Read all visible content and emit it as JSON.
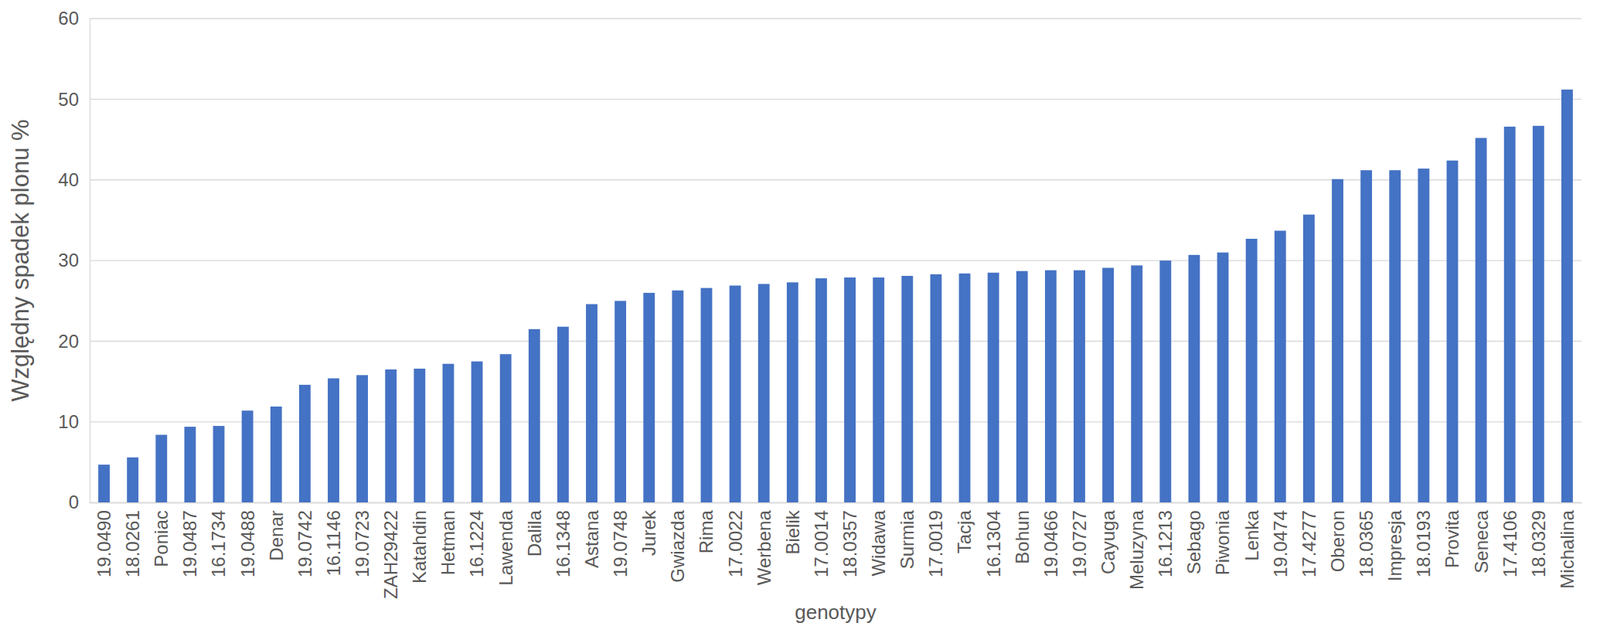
{
  "chart_data": {
    "type": "bar",
    "y_label": "Względny spadek plonu %",
    "x_label": "genotypy",
    "categories": [
      "19.0490",
      "18.0261",
      "Poniac",
      "19.0487",
      "16.1734",
      "19.0488",
      "Denar",
      "19.0742",
      "16.1146",
      "19.0723",
      "ZAH29422",
      "Katahdin",
      "Hetman",
      "16.1224",
      "Lawenda",
      "Dalila",
      "16.1348",
      "Astana",
      "19.0748",
      "Jurek",
      "Gwiazda",
      "Rima",
      "17.0022",
      "Werbena",
      "Bielik",
      "17.0014",
      "18.0357",
      "Widawa",
      "Surmia",
      "17.0019",
      "Tacja",
      "16.1304",
      "Bohun",
      "19.0466",
      "19.0727",
      "Cayuga",
      "Meluzyna",
      "16.1213",
      "Sebago",
      "Piwonia",
      "Lenka",
      "19.0474",
      "17.4277",
      "Oberon",
      "18.0365",
      "Impresja",
      "18.0193",
      "Provita",
      "Seneca",
      "17.4106",
      "18.0329",
      "Michalina"
    ],
    "values": [
      4.7,
      5.6,
      8.4,
      9.4,
      9.5,
      11.4,
      11.9,
      14.6,
      15.4,
      15.8,
      16.5,
      16.6,
      17.2,
      17.5,
      18.4,
      21.5,
      21.8,
      24.6,
      25.0,
      26.0,
      26.3,
      26.6,
      26.9,
      27.1,
      27.3,
      27.8,
      27.9,
      27.9,
      28.1,
      28.3,
      28.4,
      28.5,
      28.7,
      28.8,
      28.8,
      29.1,
      29.4,
      30.0,
      30.7,
      31.0,
      32.7,
      33.7,
      35.7,
      40.1,
      41.2,
      41.2,
      41.4,
      42.4,
      45.2,
      46.6,
      46.7,
      51.2
    ],
    "color": "#4472c4",
    "ylim": [
      0,
      60
    ],
    "yticks": [
      0,
      10,
      20,
      30,
      40,
      50,
      60
    ],
    "grid": true
  }
}
